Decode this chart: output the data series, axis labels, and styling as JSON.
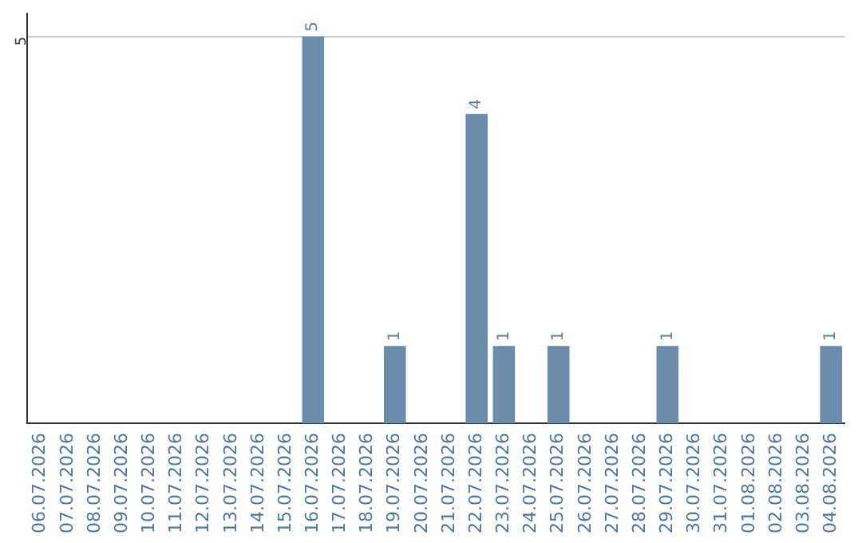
{
  "chart_data": {
    "type": "bar",
    "categories": [
      "06.07.2026",
      "07.07.2026",
      "08.07.2026",
      "09.07.2026",
      "10.07.2026",
      "11.07.2026",
      "12.07.2026",
      "13.07.2026",
      "14.07.2026",
      "15.07.2026",
      "16.07.2026",
      "17.07.2026",
      "18.07.2026",
      "19.07.2026",
      "20.07.2026",
      "21.07.2026",
      "22.07.2026",
      "23.07.2026",
      "24.07.2026",
      "25.07.2026",
      "26.07.2026",
      "27.07.2026",
      "28.07.2026",
      "29.07.2026",
      "30.07.2026",
      "31.07.2026",
      "01.08.2026",
      "02.08.2026",
      "03.08.2026",
      "04.08.2026"
    ],
    "values": [
      0,
      0,
      0,
      0,
      0,
      0,
      0,
      0,
      0,
      0,
      5,
      0,
      0,
      1,
      0,
      0,
      4,
      1,
      0,
      1,
      0,
      0,
      0,
      1,
      0,
      0,
      0,
      0,
      0,
      1
    ],
    "value_labels": [
      null,
      null,
      null,
      null,
      null,
      null,
      null,
      null,
      null,
      null,
      "5",
      null,
      null,
      "1",
      null,
      null,
      "4",
      "1",
      null,
      "1",
      null,
      null,
      null,
      "1",
      null,
      null,
      null,
      null,
      null,
      "1"
    ],
    "color": "#6b8cab",
    "ylim": [
      0,
      5.3
    ],
    "yticks": [
      5
    ],
    "grid": "y",
    "legend": false
  }
}
